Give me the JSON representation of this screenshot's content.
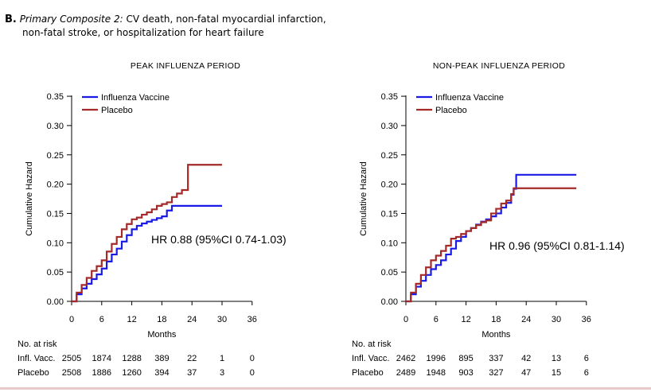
{
  "figure": {
    "panel_letter": "B.",
    "heading_italic": "Primary Composite 2:",
    "heading_line1": "CV death, non-fatal myocardial infarction,",
    "heading_line2": "non-fatal stroke, or hospitalization for heart failure"
  },
  "chart_data": [
    {
      "type": "line",
      "title": "PEAK INFLUENZA PERIOD",
      "xlabel": "Months",
      "ylabel": "Cumulative Hazard",
      "xlim": [
        0,
        36
      ],
      "ylim": [
        0,
        0.35
      ],
      "x_ticks": [
        "0",
        "6",
        "12",
        "18",
        "24",
        "30",
        "36"
      ],
      "y_ticks": [
        "0.00",
        "0.05",
        "0.10",
        "0.15",
        "0.20",
        "0.25",
        "0.30",
        "0.35"
      ],
      "legend_position": "top-left",
      "annotation": "HR 0.88 (95%CI 0.74-1.03)",
      "series": [
        {
          "name": "Influenza Vaccine",
          "color": "#1a1ae6",
          "x": [
            0,
            1,
            2,
            3,
            4,
            5,
            6,
            7,
            8,
            9,
            10,
            11,
            12,
            13,
            14,
            15,
            16,
            17,
            18,
            19,
            20,
            22,
            24,
            26,
            28,
            30
          ],
          "y": [
            0,
            0.012,
            0.022,
            0.03,
            0.038,
            0.046,
            0.056,
            0.068,
            0.08,
            0.09,
            0.102,
            0.113,
            0.123,
            0.129,
            0.133,
            0.136,
            0.139,
            0.142,
            0.145,
            0.155,
            0.163,
            0.163,
            0.163,
            0.163,
            0.163,
            0.163
          ]
        },
        {
          "name": "Placebo",
          "color": "#a42a2a",
          "x": [
            0,
            1,
            2,
            3,
            4,
            5,
            6,
            7,
            8,
            9,
            10,
            11,
            12,
            13,
            14,
            15,
            16,
            17,
            18,
            19,
            20,
            21,
            22,
            22.5,
            23,
            23.2,
            26,
            28,
            30
          ],
          "y": [
            0,
            0.015,
            0.028,
            0.04,
            0.052,
            0.06,
            0.07,
            0.085,
            0.098,
            0.11,
            0.123,
            0.132,
            0.14,
            0.143,
            0.148,
            0.152,
            0.157,
            0.163,
            0.166,
            0.169,
            0.178,
            0.184,
            0.19,
            0.19,
            0.19,
            0.233,
            0.233,
            0.233,
            0.233
          ]
        }
      ],
      "at_risk": {
        "label": "No. at risk",
        "rows": [
          {
            "label": "Infl. Vacc.",
            "values": [
              "2505",
              "1874",
              "1288",
              "389",
              "22",
              "1",
              "0"
            ]
          },
          {
            "label": "Placebo",
            "values": [
              "2508",
              "1886",
              "1260",
              "394",
              "37",
              "3",
              "0"
            ]
          }
        ]
      }
    },
    {
      "type": "line",
      "title": "NON-PEAK INFLUENZA PERIOD",
      "xlabel": "Months",
      "ylabel": "Cumulative Hazard",
      "xlim": [
        0,
        36
      ],
      "ylim": [
        0,
        0.35
      ],
      "x_ticks": [
        "0",
        "6",
        "12",
        "18",
        "24",
        "30",
        "36"
      ],
      "y_ticks": [
        "0.00",
        "0.05",
        "0.10",
        "0.15",
        "0.20",
        "0.25",
        "0.30",
        "0.35"
      ],
      "legend_position": "top-left",
      "annotation": "HR 0.96 (95%CI 0.81-1.14)",
      "series": [
        {
          "name": "Influenza Vaccine",
          "color": "#1a1ae6",
          "x": [
            0,
            1,
            2,
            3,
            4,
            5,
            6,
            7,
            8,
            9,
            10,
            11,
            12,
            13,
            14,
            15,
            16,
            17,
            18,
            19,
            20,
            21,
            21.5,
            22,
            26,
            30,
            34
          ],
          "y": [
            0,
            0.012,
            0.025,
            0.035,
            0.045,
            0.055,
            0.062,
            0.07,
            0.08,
            0.09,
            0.103,
            0.11,
            0.12,
            0.125,
            0.131,
            0.136,
            0.14,
            0.145,
            0.15,
            0.16,
            0.168,
            0.182,
            0.192,
            0.216,
            0.216,
            0.216,
            0.216
          ]
        },
        {
          "name": "Placebo",
          "color": "#a42a2a",
          "x": [
            0,
            1,
            2,
            3,
            4,
            5,
            6,
            7,
            8,
            9,
            10,
            11,
            12,
            13,
            14,
            15,
            16,
            17,
            18,
            19,
            20,
            21,
            21.5,
            22,
            26,
            30,
            34
          ],
          "y": [
            0,
            0.015,
            0.03,
            0.045,
            0.058,
            0.07,
            0.078,
            0.086,
            0.095,
            0.107,
            0.11,
            0.115,
            0.12,
            0.125,
            0.13,
            0.135,
            0.138,
            0.15,
            0.158,
            0.167,
            0.172,
            0.183,
            0.193,
            0.193,
            0.193,
            0.193,
            0.193
          ]
        }
      ],
      "at_risk": {
        "label": "No. at risk",
        "rows": [
          {
            "label": "Infl. Vacc.",
            "values": [
              "2462",
              "1996",
              "895",
              "337",
              "42",
              "13",
              "6"
            ]
          },
          {
            "label": "Placebo",
            "values": [
              "2489",
              "1948",
              "903",
              "327",
              "47",
              "15",
              "6"
            ]
          }
        ]
      }
    }
  ]
}
